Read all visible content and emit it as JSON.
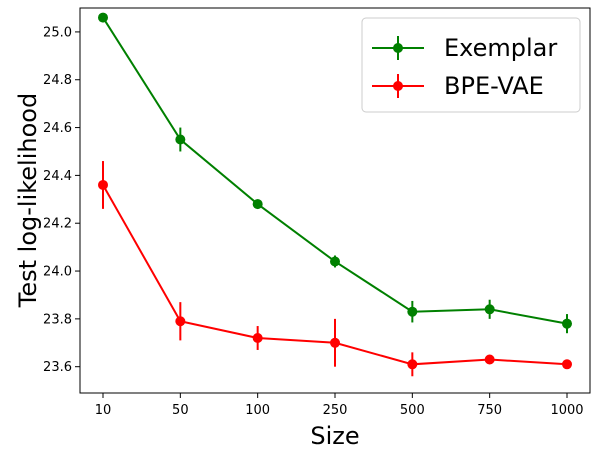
{
  "chart_data": {
    "type": "line",
    "xlabel": "Size",
    "ylabel": "Test log-likelihood",
    "categories": [
      "10",
      "50",
      "100",
      "250",
      "500",
      "750",
      "1000"
    ],
    "y_ticks": [
      23.6,
      23.8,
      24.0,
      24.2,
      24.4,
      24.6,
      24.8,
      25.0
    ],
    "ylim": [
      23.49,
      25.1
    ],
    "grid": false,
    "legend_position": "top-right",
    "series": [
      {
        "name": "Exemplar",
        "color": "#008000",
        "values": [
          25.06,
          24.55,
          24.28,
          24.04,
          23.83,
          23.84,
          23.78
        ],
        "errors": [
          0.005,
          0.05,
          0.02,
          0.025,
          0.045,
          0.04,
          0.04
        ]
      },
      {
        "name": "BPE-VAE",
        "color": "#ff0000",
        "values": [
          24.36,
          23.79,
          23.72,
          23.7,
          23.61,
          23.63,
          23.61
        ],
        "errors": [
          0.1,
          0.08,
          0.05,
          0.1,
          0.05,
          0.01,
          0.01
        ]
      }
    ]
  }
}
